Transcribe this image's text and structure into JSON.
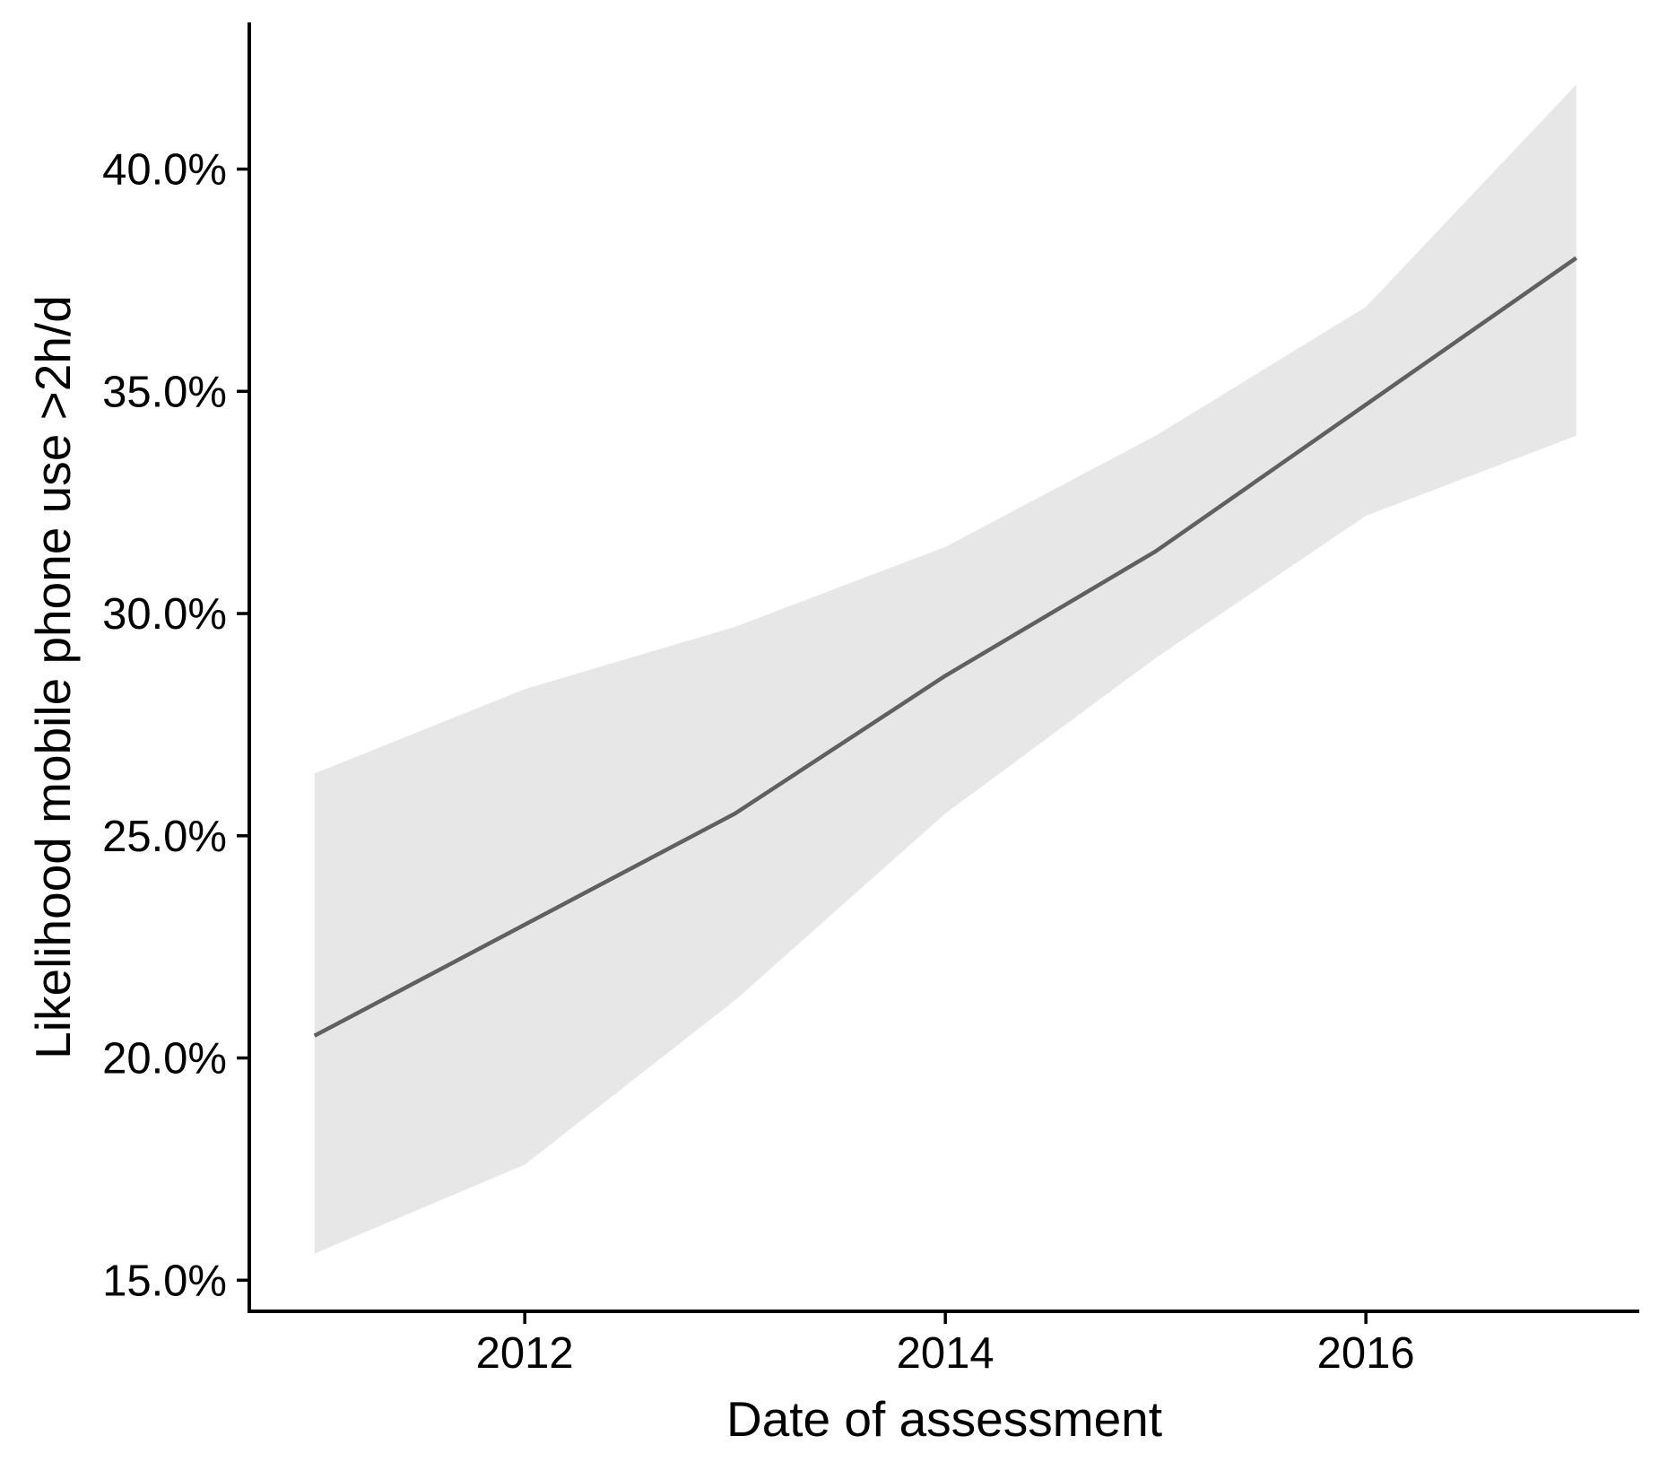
{
  "chart_data": {
    "type": "line",
    "title": "",
    "xlabel": "Date of assessment",
    "ylabel": "Likelihood mobile phone use >2h/d",
    "x": [
      2011,
      2012,
      2013,
      2014,
      2015,
      2016,
      2017
    ],
    "series": [
      {
        "name": "fitted_likelihood_pct",
        "values": [
          20.5,
          23.0,
          25.5,
          28.6,
          31.4,
          34.7,
          38.0
        ]
      },
      {
        "name": "ci_lower_pct",
        "values": [
          15.6,
          17.6,
          21.3,
          25.5,
          29.0,
          32.2,
          34.0
        ]
      },
      {
        "name": "ci_upper_pct",
        "values": [
          26.4,
          28.3,
          29.7,
          31.5,
          34.0,
          36.9,
          41.9
        ]
      }
    ],
    "x_ticks": [
      2012,
      2014,
      2016
    ],
    "x_tick_labels": [
      "2012",
      "2014",
      "2016"
    ],
    "y_ticks": [
      15,
      20,
      25,
      30,
      35,
      40
    ],
    "y_tick_labels": [
      "15.0%",
      "20.0%",
      "25.0%",
      "30.0%",
      "35.0%",
      "40.0%"
    ],
    "xlim": [
      2010.69,
      2017.3
    ],
    "ylim": [
      14.3,
      43.3
    ],
    "grid": false,
    "legend_position": "none",
    "colors": {
      "line": "#606060",
      "ribbon": "#e7e7e7",
      "axis": "#000000",
      "text": "#000000",
      "background": "#ffffff"
    }
  }
}
